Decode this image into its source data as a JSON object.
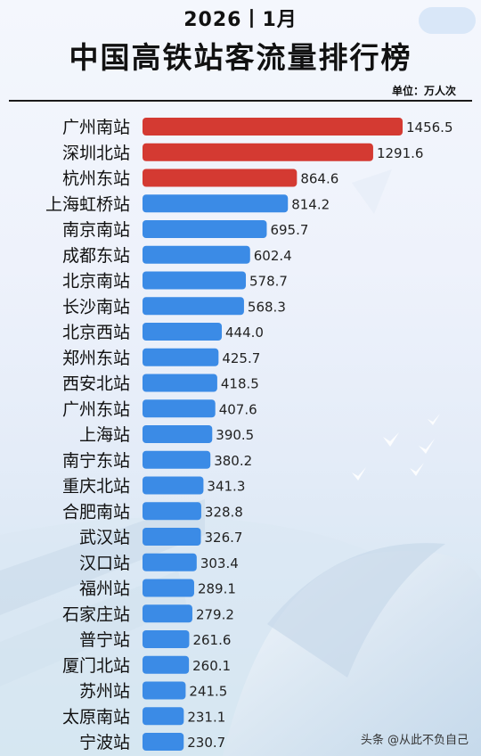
{
  "header": {
    "date": "2026丨1月",
    "title": "中国高铁站客流量排行榜",
    "unit": "单位：万人次"
  },
  "watermark": "头条 @从此不负自己",
  "colors": {
    "top3": "#d43a32",
    "rest": "#3b8be6"
  },
  "chart_data": {
    "type": "bar",
    "orientation": "horizontal",
    "xlim": [
      0,
      1456.5
    ],
    "categories": [
      "广州南站",
      "深圳北站",
      "杭州东站",
      "上海虹桥站",
      "南京南站",
      "成都东站",
      "北京南站",
      "长沙南站",
      "北京西站",
      "郑州东站",
      "西安北站",
      "广州东站",
      "上海站",
      "南宁东站",
      "重庆北站",
      "合肥南站",
      "武汉站",
      "汉口站",
      "福州站",
      "石家庄站",
      "普宁站",
      "厦门北站",
      "苏州站",
      "太原南站",
      "宁波站"
    ],
    "values": [
      1456.5,
      1291.6,
      864.6,
      814.2,
      695.7,
      602.4,
      578.7,
      568.3,
      444.0,
      425.7,
      418.5,
      407.6,
      390.5,
      380.2,
      341.3,
      328.8,
      326.7,
      303.4,
      289.1,
      279.2,
      261.6,
      260.1,
      241.5,
      231.1,
      230.7
    ],
    "value_labels": [
      "1456.5",
      "1291.6",
      "864.6",
      "814.2",
      "695.7",
      "602.4",
      "578.7",
      "568.3",
      "444.0",
      "425.7",
      "418.5",
      "407.6",
      "390.5",
      "380.2",
      "341.3",
      "328.8",
      "326.7",
      "303.4",
      "289.1",
      "279.2",
      "261.6",
      "260.1",
      "241.5",
      "231.1",
      "230.7"
    ],
    "highlight_top_n": 3
  }
}
